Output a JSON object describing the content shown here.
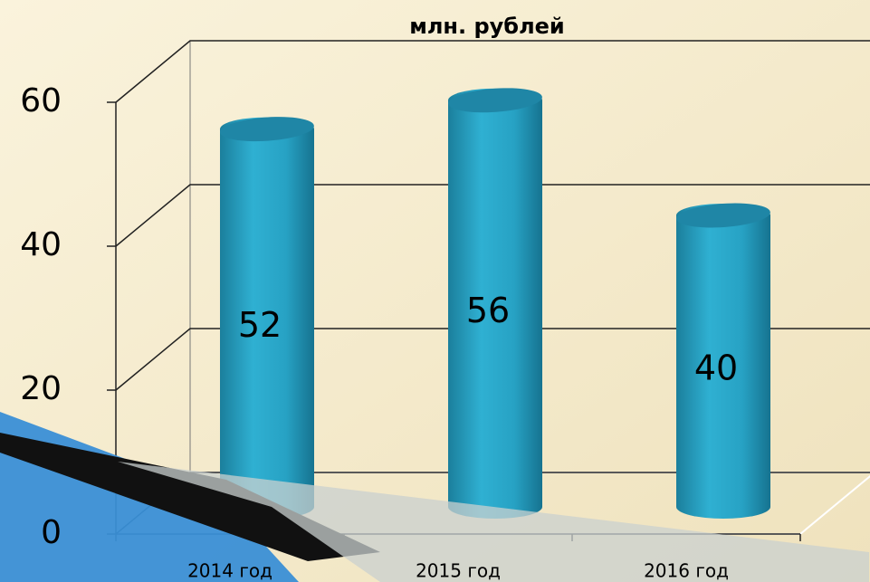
{
  "chart_data": {
    "type": "bar3d",
    "title": "млн. рублей",
    "categories": [
      "2014 год",
      "2015 год",
      "2016 год"
    ],
    "values": [
      52,
      56,
      40
    ],
    "color": "#2aa6c8",
    "ylim": [
      0,
      60
    ],
    "yticks": [
      0,
      20,
      40,
      60
    ],
    "grid": true
  }
}
